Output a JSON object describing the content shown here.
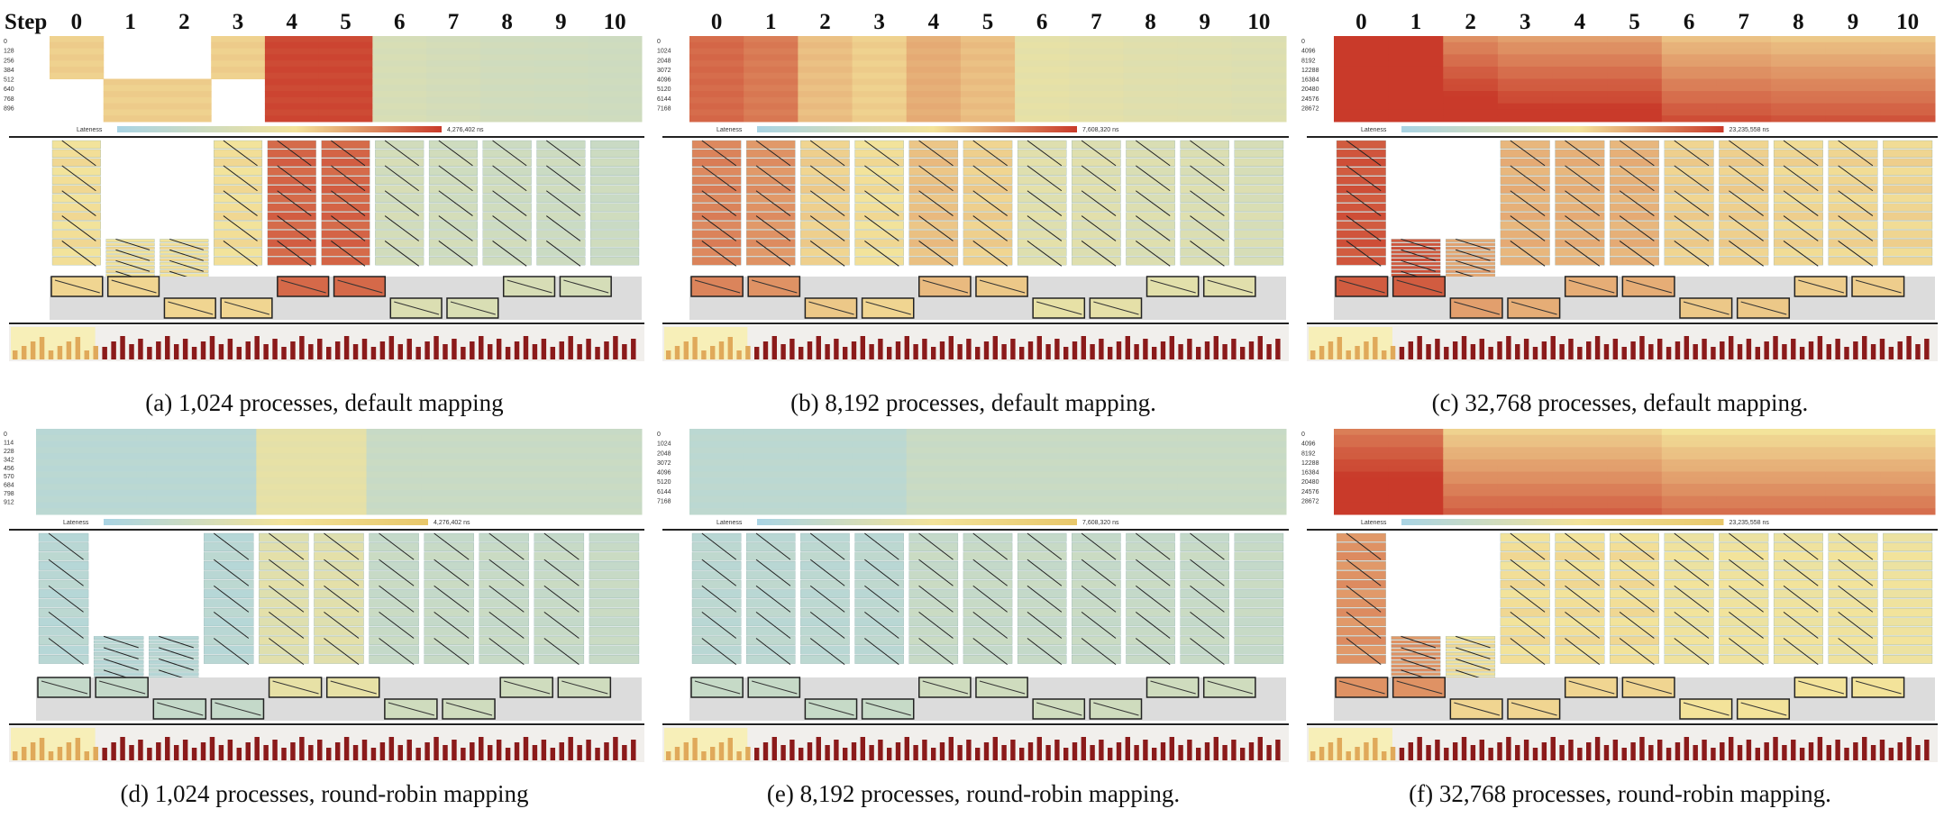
{
  "chart_data": [
    {
      "type": "heatmap",
      "panel_id": "a",
      "caption": "(a) 1,024 processes, default mapping",
      "step_header": "Step",
      "steps": [
        "0",
        "1",
        "2",
        "3",
        "4",
        "5",
        "6",
        "7",
        "8",
        "9",
        "10"
      ],
      "row_ticks": [
        "0",
        "128",
        "256",
        "384",
        "512",
        "640",
        "768",
        "896"
      ],
      "legend_label": "Lateness",
      "legend_max": "4,276,402 ns",
      "colors": {
        "low": "#a9d4e4",
        "mid": "#f3e39a",
        "high": "#c93a2a"
      }
    },
    {
      "type": "heatmap",
      "panel_id": "b",
      "caption": "(b) 8,192 processes, default mapping.",
      "steps": [
        "0",
        "1",
        "2",
        "3",
        "4",
        "5",
        "6",
        "7",
        "8",
        "9",
        "10"
      ],
      "row_ticks": [
        "0",
        "1024",
        "2048",
        "3072",
        "4096",
        "5120",
        "6144",
        "7168"
      ],
      "legend_label": "Lateness",
      "legend_max": "7,608,320 ns"
    },
    {
      "type": "heatmap",
      "panel_id": "c",
      "caption": "(c) 32,768 processes, default mapping.",
      "steps": [
        "0",
        "1",
        "2",
        "3",
        "4",
        "5",
        "6",
        "7",
        "8",
        "9",
        "10"
      ],
      "row_ticks": [
        "0",
        "4096",
        "8192",
        "12288",
        "16384",
        "20480",
        "24576",
        "28672"
      ],
      "legend_label": "Lateness",
      "legend_max": "23,235,558 ns"
    },
    {
      "type": "heatmap",
      "panel_id": "d",
      "caption": "(d) 1,024 processes, round-robin mapping",
      "row_ticks": [
        "0",
        "114",
        "228",
        "342",
        "456",
        "570",
        "684",
        "798",
        "912"
      ],
      "legend_label": "Lateness",
      "legend_max": "4,276,402 ns"
    },
    {
      "type": "heatmap",
      "panel_id": "e",
      "caption": "(e) 8,192 processes, round-robin mapping.",
      "row_ticks": [
        "0",
        "1024",
        "2048",
        "3072",
        "4096",
        "5120",
        "6144",
        "7168"
      ],
      "legend_label": "Lateness",
      "legend_max": "7,608,320 ns"
    },
    {
      "type": "heatmap",
      "panel_id": "f",
      "caption": "(f) 32,768 processes, round-robin mapping.",
      "row_ticks": [
        "0",
        "4096",
        "8192",
        "12288",
        "16384",
        "20480",
        "24576",
        "28672"
      ],
      "legend_label": "Lateness",
      "legend_max": "23,235,558 ns"
    }
  ]
}
